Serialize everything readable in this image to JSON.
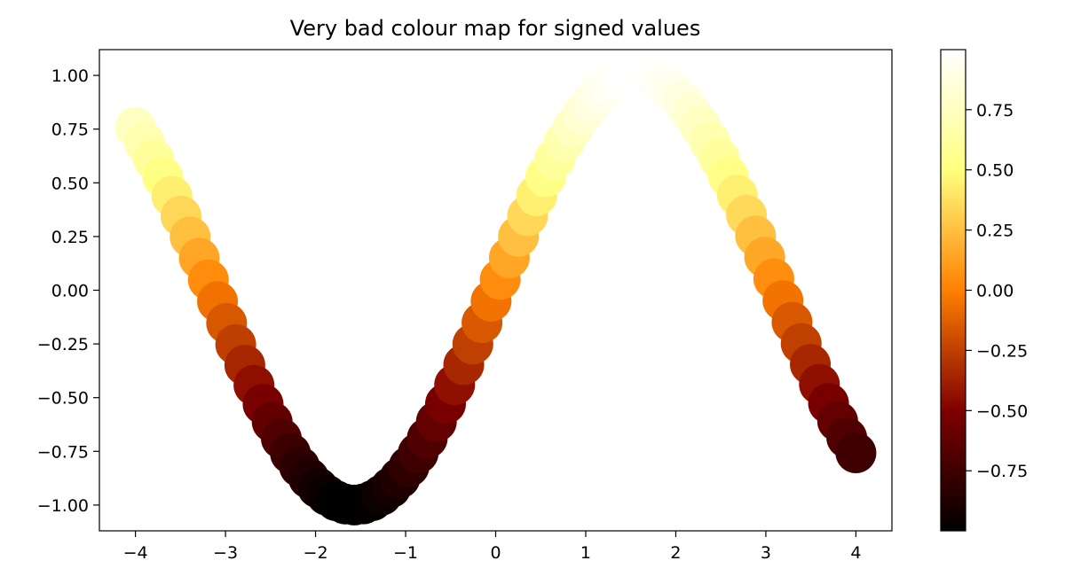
{
  "chart_data": {
    "type": "scatter",
    "title": "Very bad colour map for signed values",
    "xlabel": "",
    "ylabel": "",
    "xlim": [
      -4.4,
      4.4
    ],
    "ylim": [
      -1.12,
      1.12
    ],
    "x_ticks": [
      -4,
      -3,
      -2,
      -1,
      0,
      1,
      2,
      3,
      4
    ],
    "x_tick_labels": [
      "−4",
      "−3",
      "−2",
      "−1",
      "0",
      "1",
      "2",
      "3",
      "4"
    ],
    "y_ticks": [
      -1.0,
      -0.75,
      -0.5,
      -0.25,
      0.0,
      0.25,
      0.5,
      0.75,
      1.0
    ],
    "y_tick_labels": [
      "−1.00",
      "−0.75",
      "−0.50",
      "−0.25",
      "0.00",
      "0.25",
      "0.50",
      "0.75",
      "1.00"
    ],
    "grid": false,
    "series": [
      {
        "x_range": [
          -4,
          4
        ],
        "point_count": 80,
        "function": "sin(x)",
        "color_by": "y"
      }
    ],
    "colorbar": {
      "colormap": "afmhot",
      "range": [
        -0.9995,
        0.9995
      ],
      "ticks": [
        -0.75,
        -0.5,
        -0.25,
        0.0,
        0.25,
        0.5,
        0.75
      ],
      "tick_labels": [
        "−0.75",
        "−0.50",
        "−0.25",
        "0.00",
        "0.25",
        "0.50",
        "0.75"
      ],
      "placement": "right"
    }
  }
}
